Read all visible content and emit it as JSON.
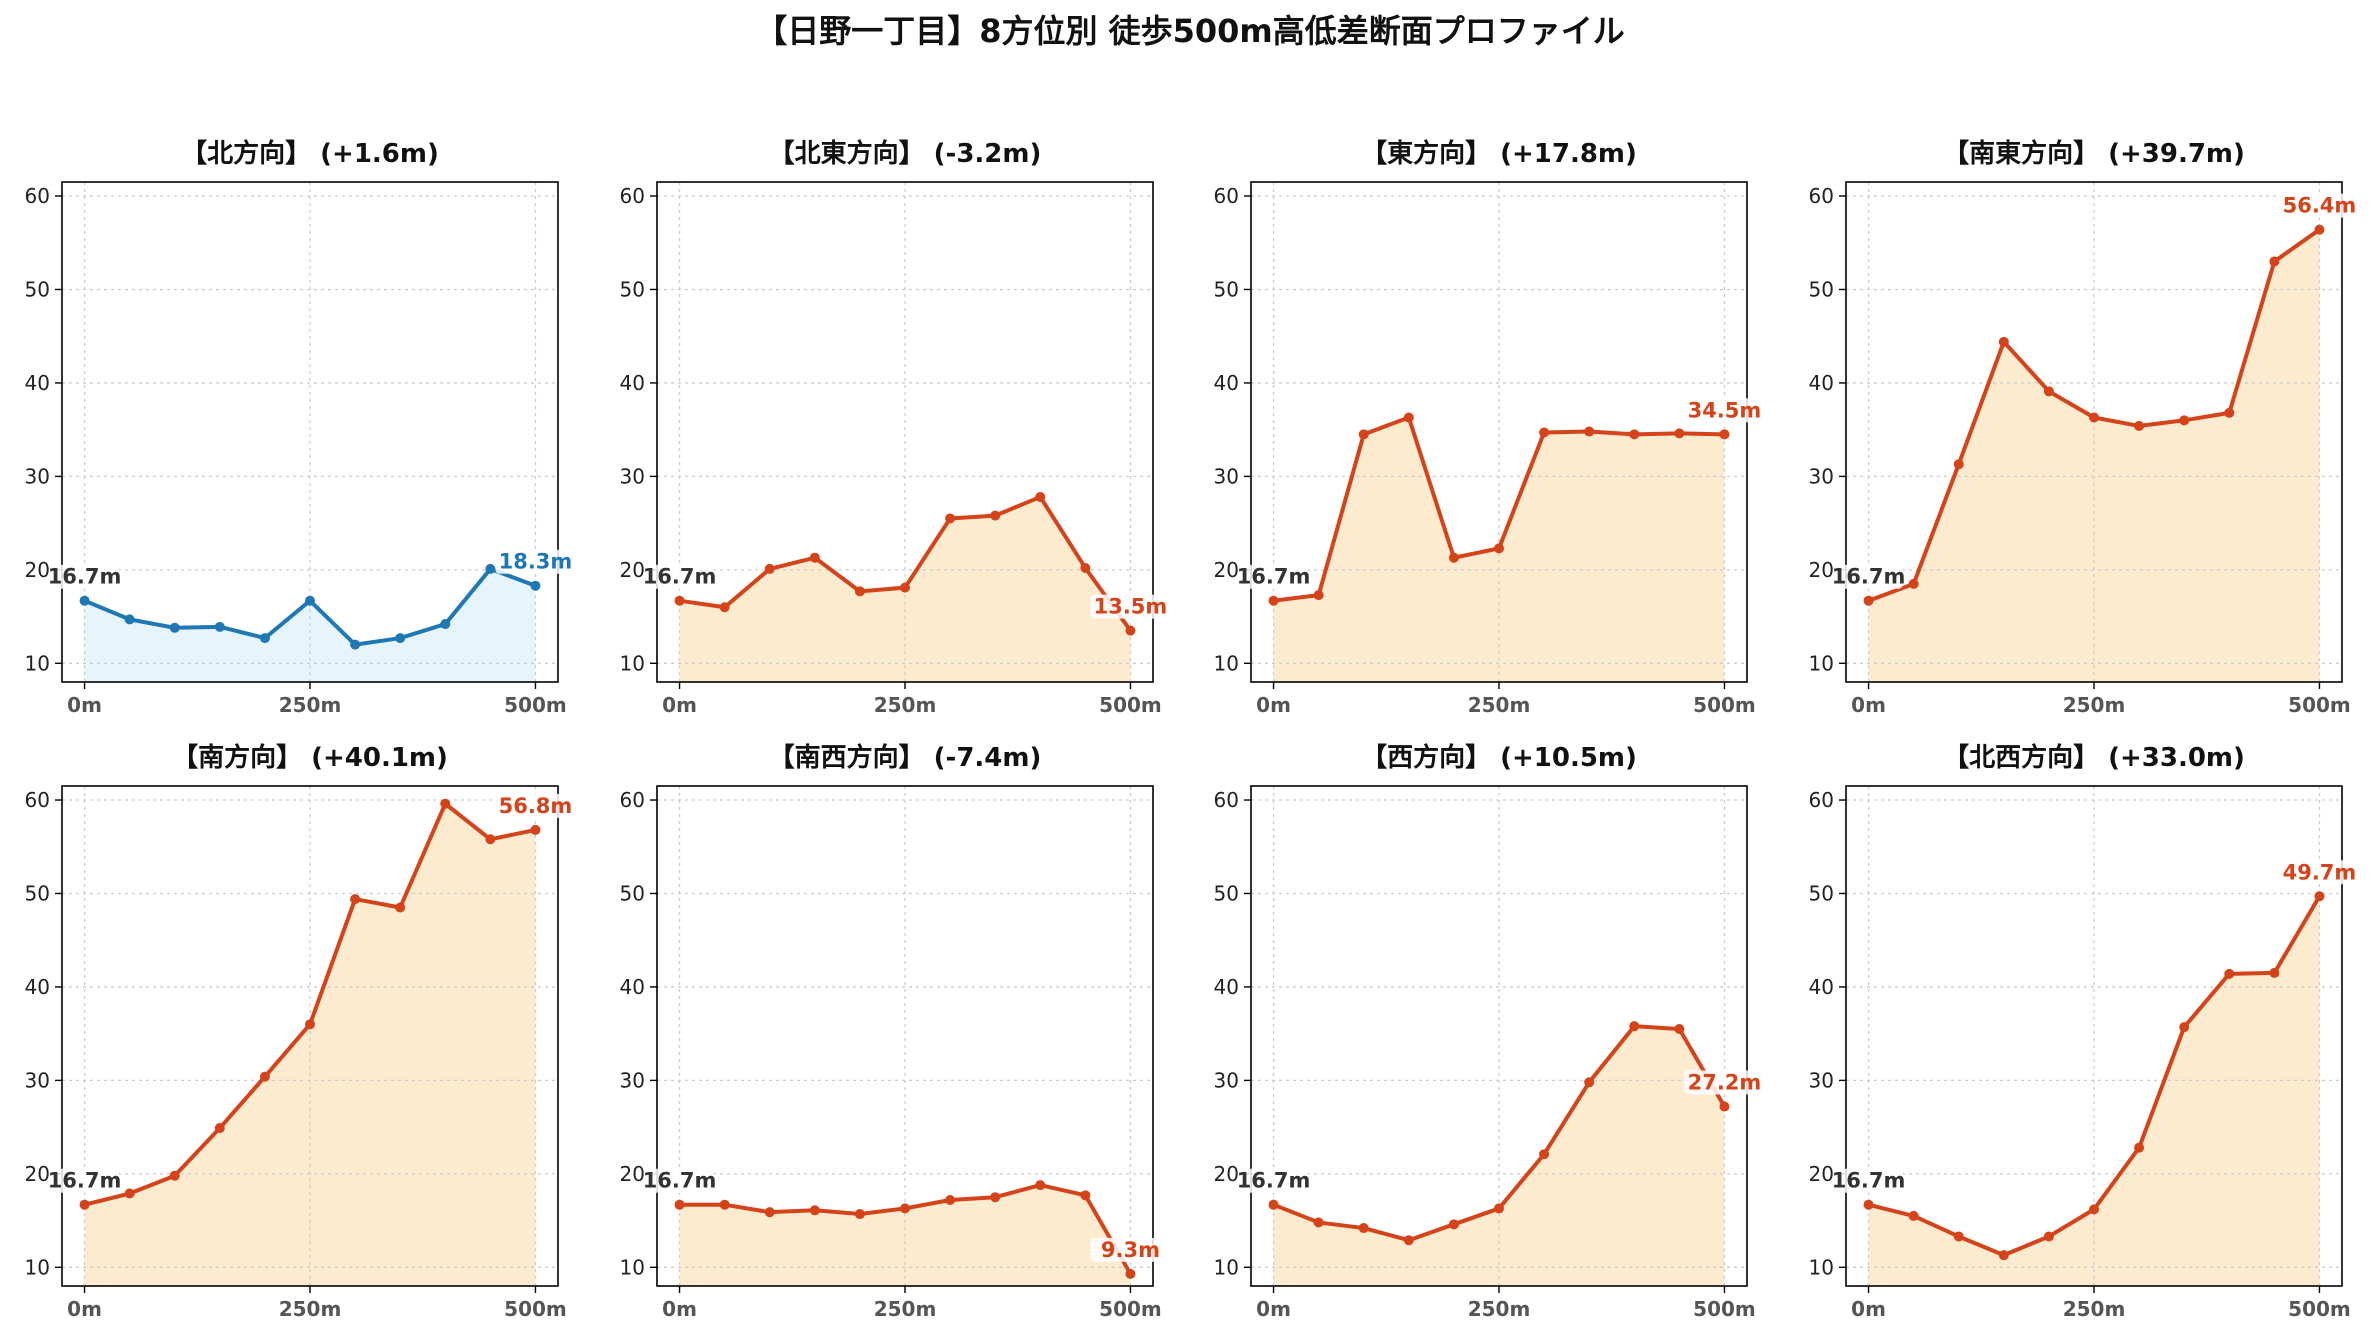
{
  "title": "【日野一丁目】8方位別 徒歩500m高低差断面プロファイル",
  "colors": {
    "up_line": "#d4431a",
    "up_fill": "#fdebd0",
    "down_line": "#1f77b4",
    "down_fill": "#e6f4fb",
    "grid": "#cccccc",
    "start_label": "#333333"
  },
  "chart_data": [
    {
      "type": "area",
      "title": "【北方向】 (+1.6m)",
      "trend": "flat",
      "x": [
        0,
        50,
        100,
        150,
        200,
        250,
        300,
        350,
        400,
        450,
        500
      ],
      "values": [
        16.7,
        14.7,
        13.8,
        13.9,
        12.7,
        16.7,
        12.0,
        12.7,
        14.2,
        20.1,
        18.3
      ],
      "start_label": "16.7m",
      "end_label": "18.3m",
      "xticks": [
        "0m",
        "250m",
        "500m"
      ],
      "yticks": [
        10,
        20,
        30,
        40,
        50,
        60
      ],
      "ylim": [
        8,
        61.5
      ],
      "grid": true
    },
    {
      "type": "area",
      "title": "【北東方向】 (-3.2m)",
      "trend": "up",
      "x": [
        0,
        50,
        100,
        150,
        200,
        250,
        300,
        350,
        400,
        450,
        500
      ],
      "values": [
        16.7,
        16.0,
        20.1,
        21.3,
        17.7,
        18.1,
        25.5,
        25.8,
        27.8,
        20.2,
        13.5
      ],
      "start_label": "16.7m",
      "end_label": "13.5m",
      "xticks": [
        "0m",
        "250m",
        "500m"
      ],
      "yticks": [
        10,
        20,
        30,
        40,
        50,
        60
      ],
      "ylim": [
        8,
        61.5
      ],
      "grid": true
    },
    {
      "type": "area",
      "title": "【東方向】 (+17.8m)",
      "trend": "up",
      "x": [
        0,
        50,
        100,
        150,
        200,
        250,
        300,
        350,
        400,
        450,
        500
      ],
      "values": [
        16.7,
        17.3,
        34.5,
        36.3,
        21.3,
        22.3,
        34.7,
        34.8,
        34.5,
        34.6,
        34.5
      ],
      "start_label": "16.7m",
      "end_label": "34.5m",
      "xticks": [
        "0m",
        "250m",
        "500m"
      ],
      "yticks": [
        10,
        20,
        30,
        40,
        50,
        60
      ],
      "ylim": [
        8,
        61.5
      ],
      "grid": true
    },
    {
      "type": "area",
      "title": "【南東方向】 (+39.7m)",
      "trend": "up",
      "x": [
        0,
        50,
        100,
        150,
        200,
        250,
        300,
        350,
        400,
        450,
        500
      ],
      "values": [
        16.7,
        18.5,
        31.3,
        44.4,
        39.1,
        36.3,
        35.4,
        36.0,
        36.8,
        53.0,
        56.4
      ],
      "start_label": "16.7m",
      "end_label": "56.4m",
      "xticks": [
        "0m",
        "250m",
        "500m"
      ],
      "yticks": [
        10,
        20,
        30,
        40,
        50,
        60
      ],
      "ylim": [
        8,
        61.5
      ],
      "grid": true
    },
    {
      "type": "area",
      "title": "【南方向】 (+40.1m)",
      "trend": "up",
      "x": [
        0,
        50,
        100,
        150,
        200,
        250,
        300,
        350,
        400,
        450,
        500
      ],
      "values": [
        16.7,
        17.9,
        19.8,
        24.9,
        30.4,
        36.0,
        49.4,
        48.5,
        59.6,
        55.8,
        56.8
      ],
      "start_label": "16.7m",
      "end_label": "56.8m",
      "xticks": [
        "0m",
        "250m",
        "500m"
      ],
      "yticks": [
        10,
        20,
        30,
        40,
        50,
        60
      ],
      "ylim": [
        8,
        61.5
      ],
      "grid": true
    },
    {
      "type": "area",
      "title": "【南西方向】 (-7.4m)",
      "trend": "up",
      "x": [
        0,
        50,
        100,
        150,
        200,
        250,
        300,
        350,
        400,
        450,
        500
      ],
      "values": [
        16.7,
        16.7,
        15.9,
        16.1,
        15.7,
        16.3,
        17.2,
        17.5,
        18.8,
        17.7,
        9.3
      ],
      "start_label": "16.7m",
      "end_label": "9.3m",
      "xticks": [
        "0m",
        "250m",
        "500m"
      ],
      "yticks": [
        10,
        20,
        30,
        40,
        50,
        60
      ],
      "ylim": [
        8,
        61.5
      ],
      "grid": true
    },
    {
      "type": "area",
      "title": "【西方向】 (+10.5m)",
      "trend": "up",
      "x": [
        0,
        50,
        100,
        150,
        200,
        250,
        300,
        350,
        400,
        450,
        500
      ],
      "values": [
        16.7,
        14.8,
        14.2,
        12.9,
        14.6,
        16.3,
        22.1,
        29.8,
        35.8,
        35.5,
        27.2
      ],
      "start_label": "16.7m",
      "end_label": "27.2m",
      "xticks": [
        "0m",
        "250m",
        "500m"
      ],
      "yticks": [
        10,
        20,
        30,
        40,
        50,
        60
      ],
      "ylim": [
        8,
        61.5
      ],
      "grid": true
    },
    {
      "type": "area",
      "title": "【北西方向】 (+33.0m)",
      "trend": "up",
      "x": [
        0,
        50,
        100,
        150,
        200,
        250,
        300,
        350,
        400,
        450,
        500
      ],
      "values": [
        16.7,
        15.5,
        13.3,
        11.3,
        13.3,
        16.2,
        22.8,
        35.7,
        41.4,
        41.5,
        49.7
      ],
      "start_label": "16.7m",
      "end_label": "49.7m",
      "xticks": [
        "0m",
        "250m",
        "500m"
      ],
      "yticks": [
        10,
        20,
        30,
        40,
        50,
        60
      ],
      "ylim": [
        8,
        61.5
      ],
      "grid": true
    }
  ]
}
